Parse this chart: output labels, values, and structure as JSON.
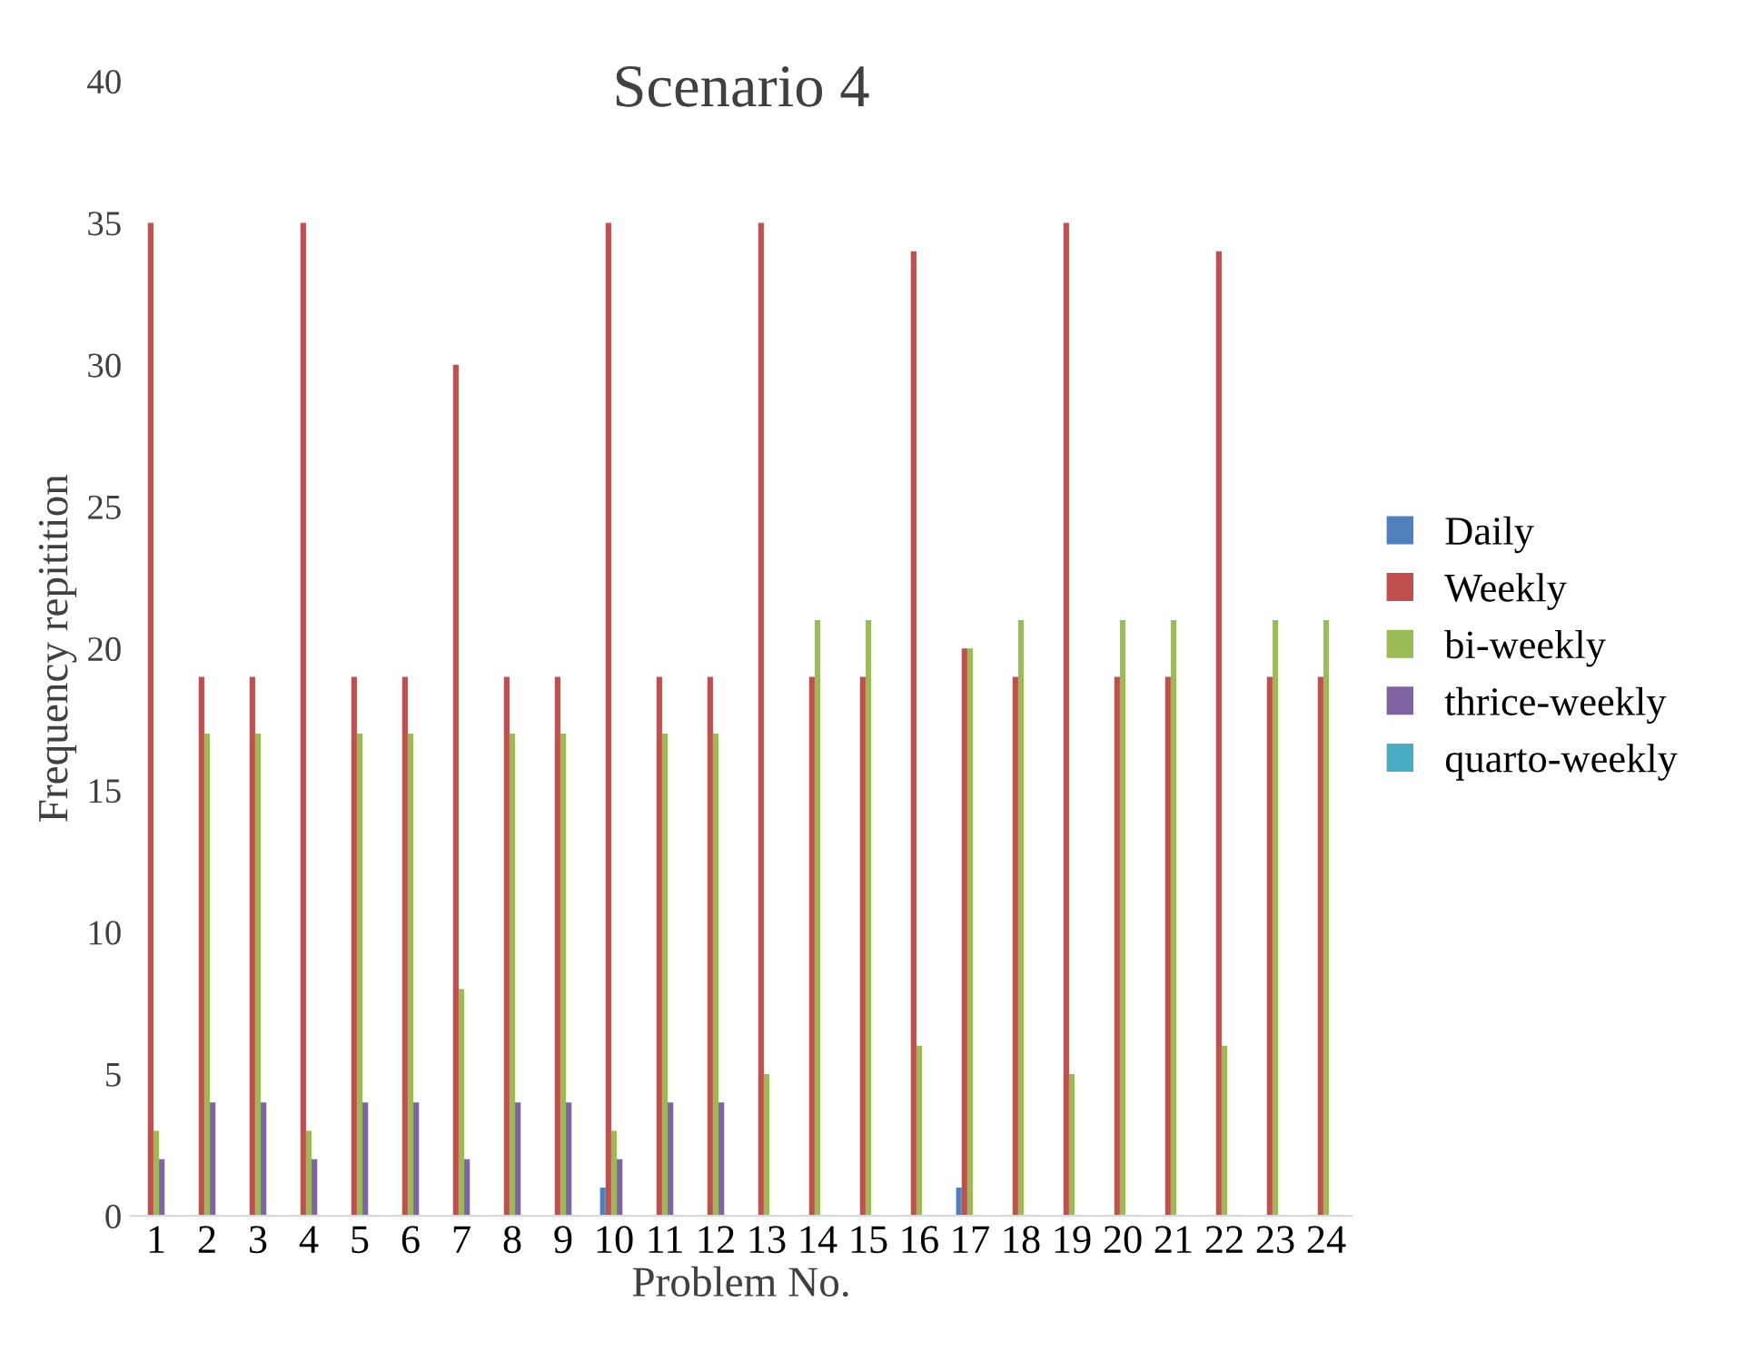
{
  "chart_data": {
    "type": "bar",
    "title": "Scenario 4",
    "xlabel": "Problem No.",
    "ylabel": "Frequency repitition",
    "categories": [
      "1",
      "2",
      "3",
      "4",
      "5",
      "6",
      "7",
      "8",
      "9",
      "10",
      "11",
      "12",
      "13",
      "14",
      "15",
      "16",
      "17",
      "18",
      "19",
      "20",
      "21",
      "22",
      "23",
      "24"
    ],
    "series": [
      {
        "name": "Daily",
        "color": "#4f81bd",
        "values": [
          0,
          0,
          0,
          0,
          0,
          0,
          0,
          0,
          0,
          1,
          0,
          0,
          0,
          0,
          0,
          0,
          1,
          0,
          0,
          0,
          0,
          0,
          0,
          0
        ]
      },
      {
        "name": "Weekly",
        "color": "#c0504d",
        "values": [
          35,
          19,
          19,
          35,
          19,
          19,
          30,
          19,
          19,
          35,
          19,
          19,
          35,
          19,
          19,
          34,
          20,
          19,
          35,
          19,
          19,
          34,
          19,
          19
        ]
      },
      {
        "name": "bi-weekly",
        "color": "#9bbb59",
        "values": [
          3,
          17,
          17,
          3,
          17,
          17,
          8,
          17,
          17,
          3,
          17,
          17,
          5,
          21,
          21,
          6,
          20,
          21,
          5,
          21,
          21,
          6,
          21,
          21
        ]
      },
      {
        "name": "thrice-weekly",
        "color": "#8064a2",
        "values": [
          2,
          4,
          4,
          2,
          4,
          4,
          2,
          4,
          4,
          2,
          4,
          4,
          0,
          0,
          0,
          0,
          0,
          0,
          0,
          0,
          0,
          0,
          0,
          0
        ]
      },
      {
        "name": "quarto-weekly",
        "color": "#4bacc6",
        "values": [
          0,
          0,
          0,
          0,
          0,
          0,
          0,
          0,
          0,
          0,
          0,
          0,
          0,
          0,
          0,
          0,
          0,
          0,
          0,
          0,
          0,
          0,
          0,
          0
        ]
      }
    ],
    "ylim": [
      0,
      40
    ],
    "yticks": [
      0,
      5,
      10,
      15,
      20,
      25,
      30,
      35,
      40
    ],
    "grid": false,
    "legend": "right"
  }
}
